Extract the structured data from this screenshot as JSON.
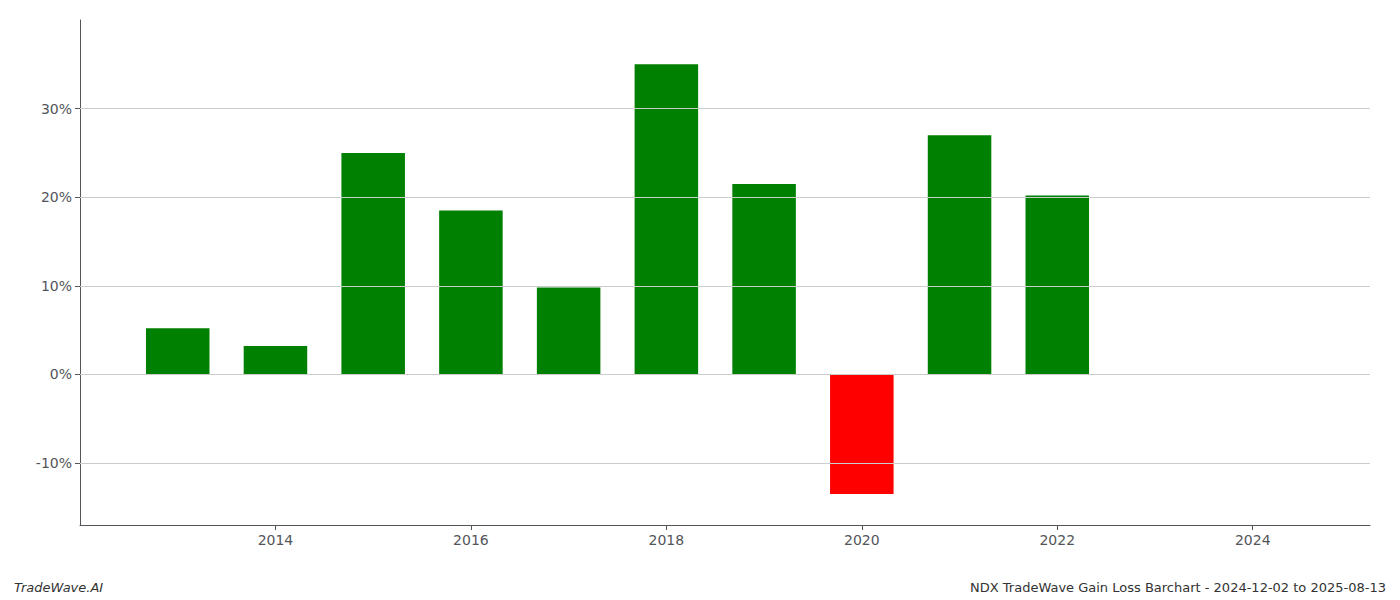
{
  "chart_data": {
    "type": "bar",
    "x": [
      2013,
      2014,
      2015,
      2016,
      2017,
      2018,
      2019,
      2020,
      2021,
      2022,
      2023
    ],
    "values": [
      5.2,
      3.2,
      25.0,
      18.5,
      9.8,
      35.0,
      21.5,
      -13.5,
      27.0,
      20.2,
      0.0
    ],
    "colors": [
      "#008000",
      "#008000",
      "#008000",
      "#008000",
      "#008000",
      "#008000",
      "#008000",
      "#ff0000",
      "#008000",
      "#008000",
      "#008000"
    ],
    "xlim": [
      2012.0,
      2025.2
    ],
    "xticks": [
      2014,
      2016,
      2018,
      2020,
      2022,
      2024
    ],
    "ylim": [
      -17,
      40
    ],
    "yticks": [
      {
        "value": -10,
        "label": "-10%"
      },
      {
        "value": 0,
        "label": "0%"
      },
      {
        "value": 10,
        "label": "10%"
      },
      {
        "value": 20,
        "label": "20%"
      },
      {
        "value": 30,
        "label": "30%"
      }
    ],
    "grid": true,
    "annotations": [
      "TradeWave.AI",
      "NDX TradeWave Gain Loss Barchart - 2024-12-02 to 2025-08-13"
    ]
  }
}
